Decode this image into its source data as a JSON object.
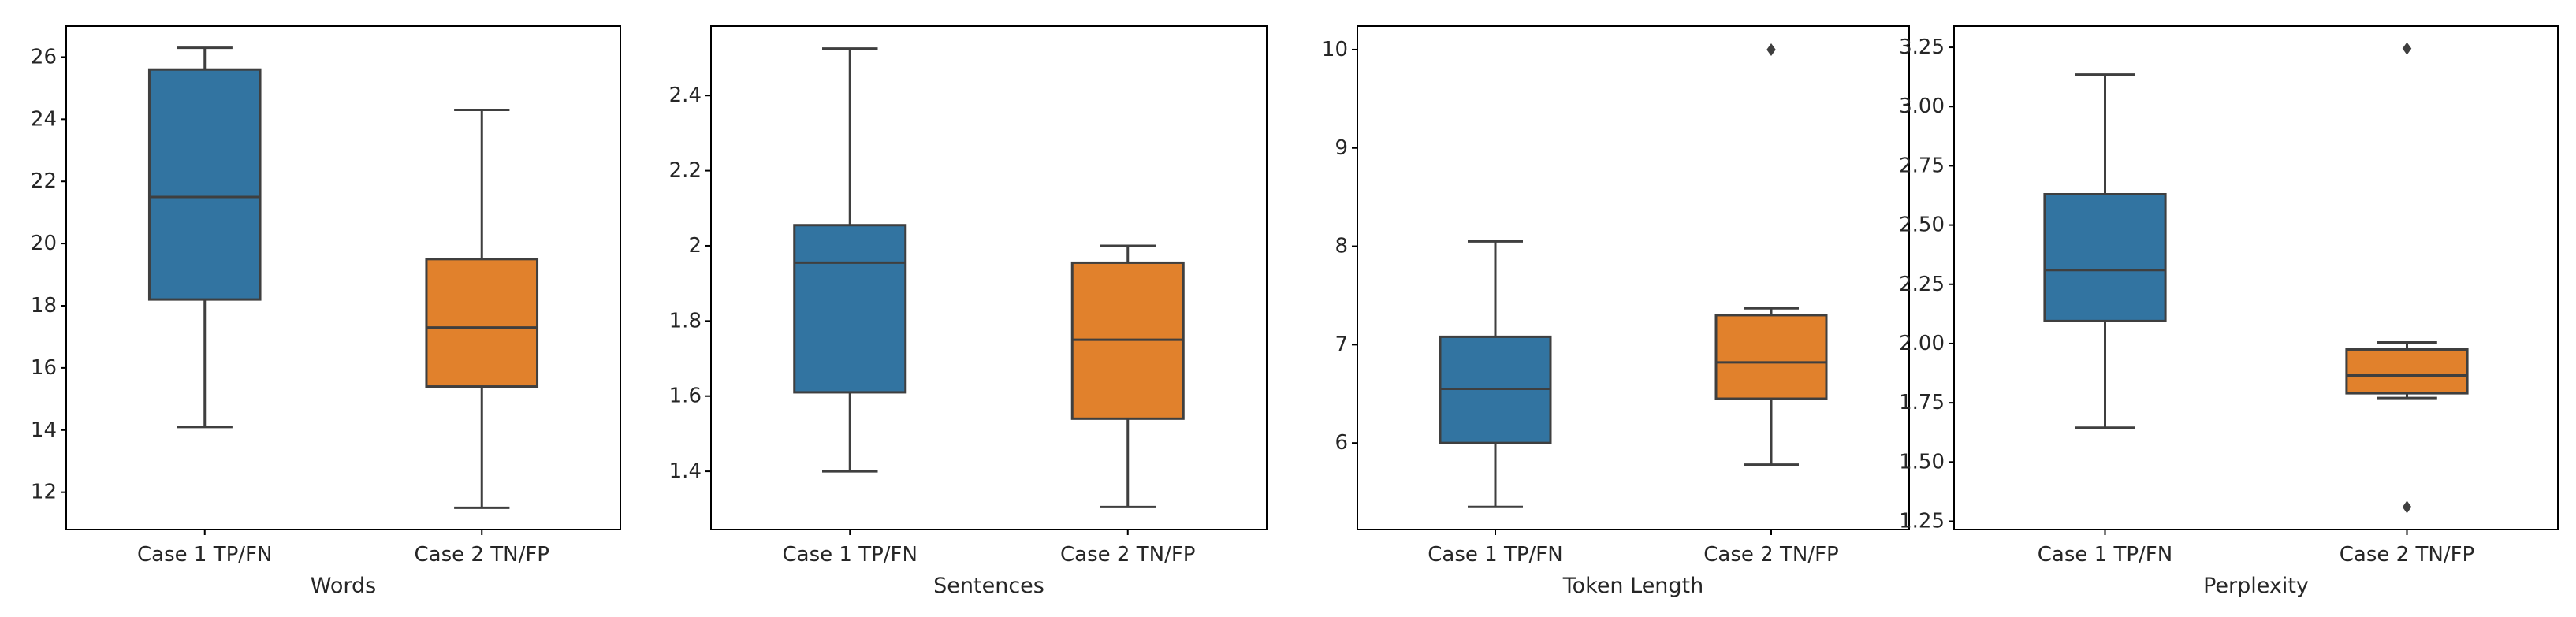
{
  "chart_data": [
    {
      "type": "box",
      "xlabel": "Words",
      "categories": [
        "Case 1 TP/FN",
        "Case 2 TN/FP"
      ],
      "ylim": [
        10.8,
        27.0
      ],
      "yticks": [
        12,
        14,
        16,
        18,
        20,
        22,
        24,
        26
      ],
      "boxes": [
        {
          "whisker_low": 14.1,
          "q1": 18.2,
          "median": 21.5,
          "q3": 25.6,
          "whisker_high": 26.3,
          "outliers": []
        },
        {
          "whisker_low": 11.5,
          "q1": 15.4,
          "median": 17.3,
          "q3": 19.5,
          "whisker_high": 24.3,
          "outliers": []
        }
      ]
    },
    {
      "type": "box",
      "xlabel": "Sentences",
      "categories": [
        "Case 1 TP/FN",
        "Case 2 TN/FP"
      ],
      "ylim": [
        1.245,
        2.585
      ],
      "yticks": [
        1.4,
        1.6,
        1.8,
        2.0,
        2.2,
        2.4
      ],
      "boxes": [
        {
          "whisker_low": 1.4,
          "q1": 1.61,
          "median": 1.955,
          "q3": 2.055,
          "whisker_high": 2.525,
          "outliers": []
        },
        {
          "whisker_low": 1.305,
          "q1": 1.54,
          "median": 1.75,
          "q3": 1.955,
          "whisker_high": 2.0,
          "outliers": []
        }
      ]
    },
    {
      "type": "box",
      "xlabel": "Token Length",
      "categories": [
        "Case 1 TP/FN",
        "Case 2 TN/FP"
      ],
      "ylim": [
        5.12,
        10.24
      ],
      "yticks": [
        6,
        7,
        8,
        9,
        10
      ],
      "boxes": [
        {
          "whisker_low": 5.35,
          "q1": 6.0,
          "median": 6.55,
          "q3": 7.08,
          "whisker_high": 8.05,
          "outliers": []
        },
        {
          "whisker_low": 5.78,
          "q1": 6.45,
          "median": 6.82,
          "q3": 7.3,
          "whisker_high": 7.37,
          "outliers": [
            10.0
          ]
        }
      ]
    },
    {
      "type": "box",
      "xlabel": "Perplexity",
      "categories": [
        "Case 1 TP/FN",
        "Case 2 TN/FP"
      ],
      "ylim": [
        1.215,
        3.34
      ],
      "yticks": [
        "1.25",
        "1.50",
        "1.75",
        "2.00",
        "2.25",
        "2.50",
        "2.75",
        "3.00",
        "3.25"
      ],
      "boxes": [
        {
          "whisker_low": 1.645,
          "q1": 2.095,
          "median": 2.31,
          "q3": 2.63,
          "whisker_high": 3.135,
          "outliers": []
        },
        {
          "whisker_low": 1.77,
          "q1": 1.79,
          "median": 1.865,
          "q3": 1.975,
          "whisker_high": 2.005,
          "outliers": [
            1.31,
            3.245
          ]
        }
      ]
    }
  ],
  "colors": {
    "box_0": "#3274a1",
    "box_1": "#e1812c",
    "line": "#3f3f3f",
    "text": "#262626",
    "frame": "#000000"
  }
}
